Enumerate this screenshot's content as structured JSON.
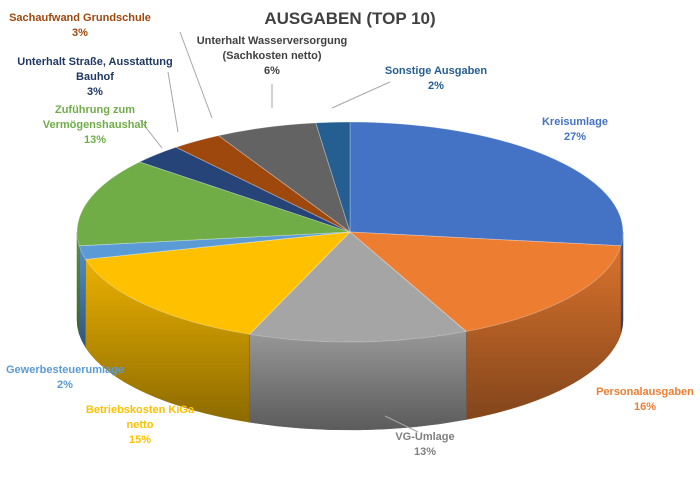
{
  "chart_data": {
    "type": "pie",
    "title": "AUSGABEN (TOP 10)",
    "series": [
      {
        "label": "Kreisumlage",
        "value": 27,
        "display": "27%",
        "color": "#4472C4"
      },
      {
        "label": "Personalausgaben",
        "value": 16,
        "display": "16%",
        "color": "#ED7D31"
      },
      {
        "label": "VG-Umlage",
        "value": 13,
        "display": "13%",
        "color": "#A5A5A5"
      },
      {
        "label": "Betriebskosten KiGa netto",
        "value": 15,
        "display": "15%",
        "color": "#FFC000"
      },
      {
        "label": "Gewerbesteuerumlage",
        "value": 2,
        "display": "2%",
        "color": "#5B9BD5"
      },
      {
        "label": "Zuführung zum Vermögenshaushalt",
        "value": 13,
        "display": "13%",
        "color": "#70AD47"
      },
      {
        "label": "Unterhalt Straße, Ausstattung Bauhof",
        "value": 3,
        "display": "3%",
        "color": "#264478"
      },
      {
        "label": "Sachaufwand Grundschule",
        "value": 3,
        "display": "3%",
        "color": "#9E480E"
      },
      {
        "label": "Unterhalt Wasserversorgung (Sachkosten netto)",
        "value": 6,
        "display": "6%",
        "color": "#636363"
      },
      {
        "label": "Sonstige Ausgaben",
        "value": 2,
        "display": "2%",
        "color": "#255E91"
      }
    ],
    "label_lines": [
      [
        "Kreisumlage"
      ],
      [
        "Personalausgaben"
      ],
      [
        "VG-Umlage"
      ],
      [
        "Betriebskosten KiGa",
        "netto"
      ],
      [
        "Gewerbesteuerumlage"
      ],
      [
        "Zuführung zum",
        "Vermögenshaushalt"
      ],
      [
        "Unterhalt Straße, Ausstattung",
        "Bauhof"
      ],
      [
        "Sachaufwand Grundschule"
      ],
      [
        "Unterhalt Wasserversorgung",
        "(Sachkosten netto)"
      ],
      [
        "Sonstige Ausgaben"
      ]
    ],
    "label_colors": [
      "#4472C4",
      "#ED7D31",
      "#7F7F7F",
      "#FFC000",
      "#5B9BD5",
      "#70AD47",
      "#1F3864",
      "#9E480E",
      "#404040",
      "#255E91"
    ],
    "label_weights": [
      "bold",
      "bold",
      "normal",
      "bold",
      "normal",
      "bold",
      "bold",
      "bold",
      "normal",
      "bold"
    ],
    "legend": "none",
    "style": "3d-pie"
  }
}
